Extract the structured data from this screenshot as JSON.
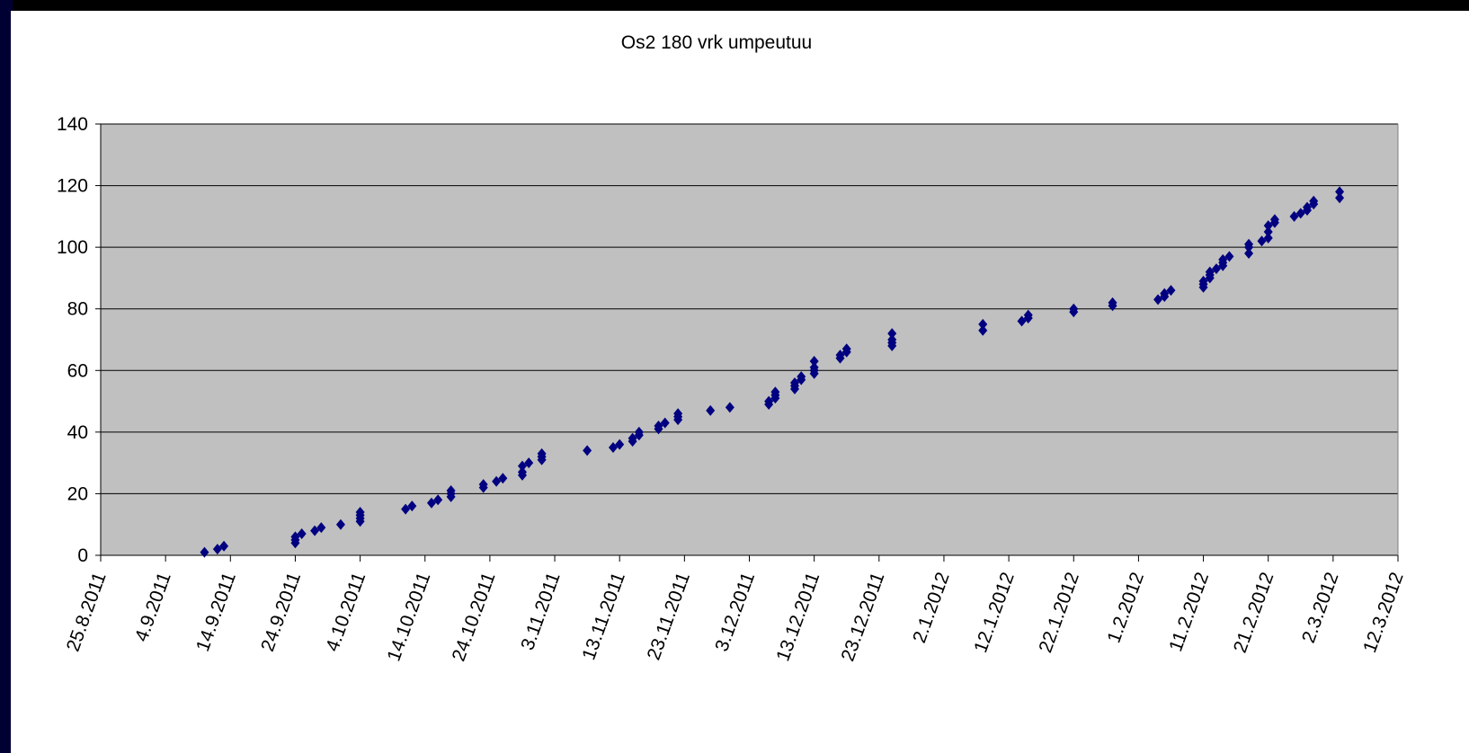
{
  "chart_data": {
    "type": "scatter",
    "title": "Os2 180 vrk umpeutuu",
    "x": [
      "10.9.2011",
      "12.9.2011",
      "13.9.2011",
      "24.9.2011",
      "24.9.2011",
      "24.9.2011",
      "25.9.2011",
      "27.9.2011",
      "28.9.2011",
      "1.10.2011",
      "4.10.2011",
      "4.10.2011",
      "4.10.2011",
      "4.10.2011",
      "11.10.2011",
      "12.10.2011",
      "15.10.2011",
      "16.10.2011",
      "18.10.2011",
      "18.10.2011",
      "18.10.2011",
      "23.10.2011",
      "23.10.2011",
      "25.10.2011",
      "26.10.2011",
      "29.10.2011",
      "29.10.2011",
      "29.10.2011",
      "30.10.2011",
      "1.11.2011",
      "1.11.2011",
      "1.11.2011",
      "8.11.2011",
      "12.11.2011",
      "13.11.2011",
      "15.11.2011",
      "15.11.2011",
      "16.11.2011",
      "16.11.2011",
      "19.11.2011",
      "19.11.2011",
      "20.11.2011",
      "22.11.2011",
      "22.11.2011",
      "22.11.2011",
      "27.11.2011",
      "30.11.2011",
      "6.12.2011",
      "6.12.2011",
      "7.12.2011",
      "7.12.2011",
      "7.12.2011",
      "10.12.2011",
      "10.12.2011",
      "10.12.2011",
      "11.12.2011",
      "11.12.2011",
      "13.12.2011",
      "13.12.2011",
      "13.12.2011",
      "13.12.2011",
      "17.12.2011",
      "17.12.2011",
      "18.12.2011",
      "18.12.2011",
      "25.12.2011",
      "25.12.2011",
      "25.12.2011",
      "25.12.2011",
      "8.1.2012",
      "8.1.2012",
      "14.1.2012",
      "15.1.2012",
      "15.1.2012",
      "22.1.2012",
      "22.1.2012",
      "28.1.2012",
      "28.1.2012",
      "4.2.2012",
      "5.2.2012",
      "5.2.2012",
      "6.2.2012",
      "11.2.2012",
      "11.2.2012",
      "11.2.2012",
      "12.2.2012",
      "12.2.2012",
      "12.2.2012",
      "13.2.2012",
      "14.2.2012",
      "14.2.2012",
      "14.2.2012",
      "15.2.2012",
      "18.2.2012",
      "18.2.2012",
      "18.2.2012",
      "20.2.2012",
      "21.2.2012",
      "21.2.2012",
      "21.2.2012",
      "22.2.2012",
      "22.2.2012",
      "25.2.2012",
      "26.2.2012",
      "27.2.2012",
      "27.2.2012",
      "28.2.2012",
      "28.2.2012",
      "3.3.2012",
      "3.3.2012"
    ],
    "values": [
      1,
      2,
      3,
      4,
      5,
      6,
      7,
      8,
      9,
      10,
      11,
      12,
      13,
      14,
      15,
      16,
      17,
      18,
      19,
      20,
      21,
      22,
      23,
      24,
      25,
      26,
      27,
      29,
      30,
      31,
      32,
      33,
      34,
      35,
      36,
      37,
      38,
      39,
      40,
      41,
      42,
      43,
      44,
      45,
      46,
      47,
      48,
      49,
      50,
      51,
      52,
      53,
      54,
      55,
      56,
      57,
      58,
      59,
      60,
      61,
      63,
      64,
      65,
      66,
      67,
      68,
      69,
      70,
      72,
      73,
      75,
      76,
      77,
      78,
      79,
      80,
      81,
      82,
      83,
      84,
      85,
      86,
      87,
      88,
      89,
      90,
      91,
      92,
      93,
      94,
      95,
      96,
      97,
      98,
      100,
      101,
      102,
      103,
      105,
      107,
      108,
      109,
      110,
      111,
      112,
      113,
      114,
      115,
      116,
      118
    ],
    "color": "#000080",
    "xlim": [
      "25.8.2011",
      "12.3.2012"
    ],
    "xticks": [
      "25.8.2011",
      "4.9.2011",
      "14.9.2011",
      "24.9.2011",
      "4.10.2011",
      "14.10.2011",
      "24.10.2011",
      "3.11.2011",
      "13.11.2011",
      "23.11.2011",
      "3.12.2011",
      "13.12.2011",
      "23.12.2011",
      "2.1.2012",
      "12.1.2012",
      "22.1.2012",
      "1.2.2012",
      "11.2.2012",
      "21.2.2012",
      "2.3.2012",
      "12.3.2012"
    ],
    "ylim": [
      0,
      140
    ],
    "yticks": [
      0,
      20,
      40,
      60,
      80,
      100,
      120,
      140
    ],
    "grid": true
  }
}
